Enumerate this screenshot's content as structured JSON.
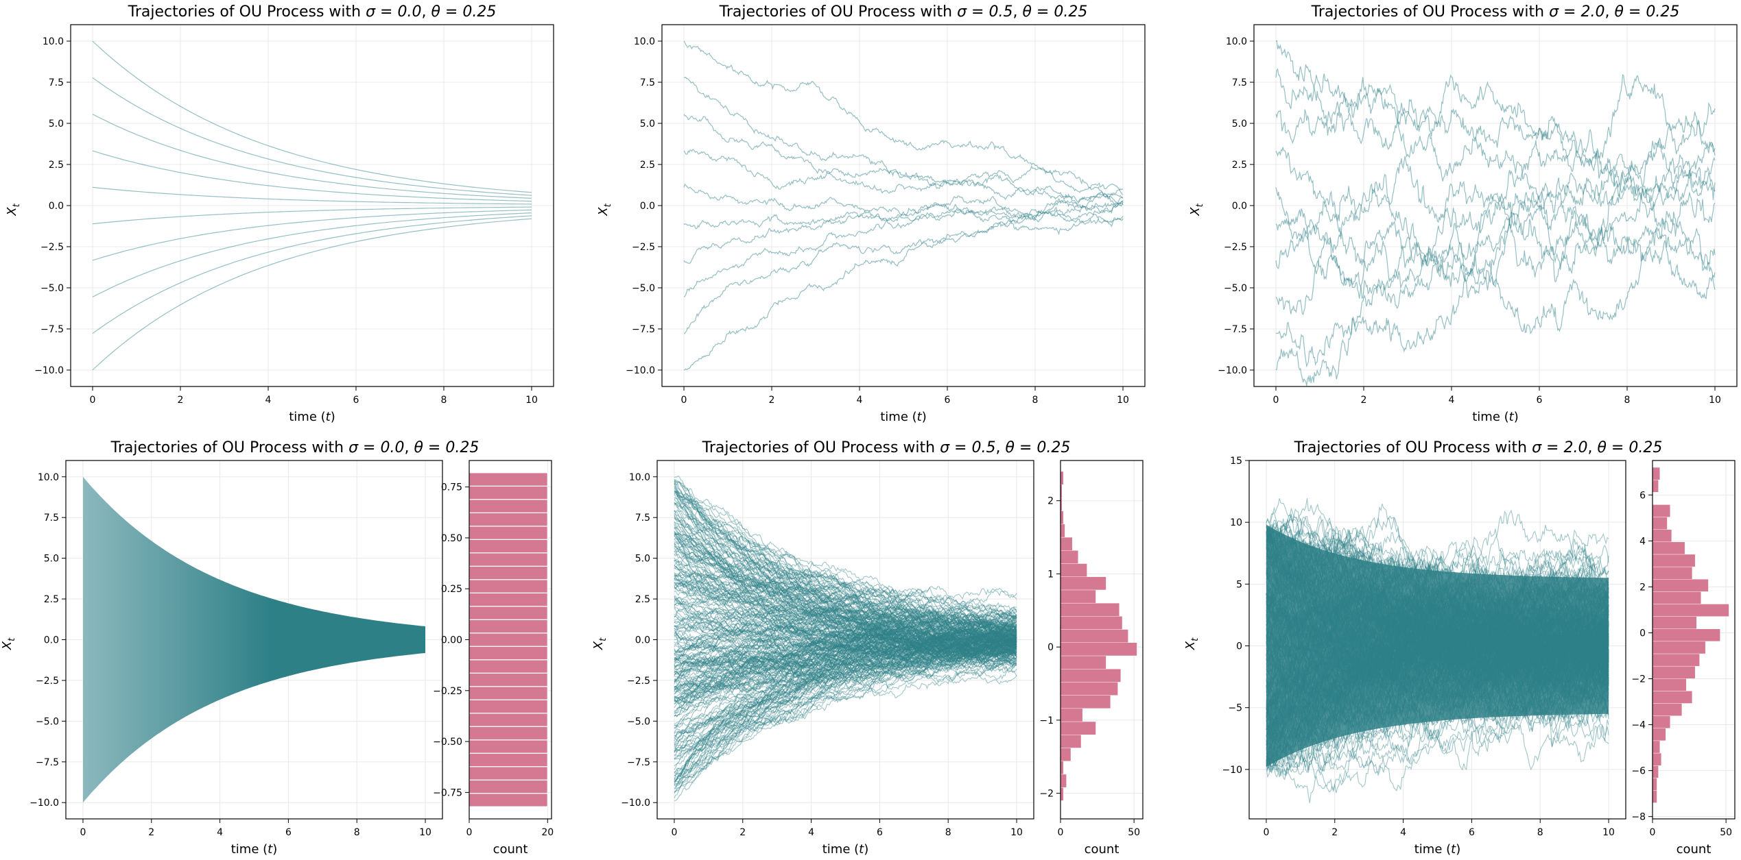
{
  "colors": {
    "trajectory": "#2e8087",
    "histogram": "#d57892",
    "grid": "#e8e8e8"
  },
  "chart_data": [
    {
      "type": "line",
      "title_prefix": "Trajectories of OU Process with ",
      "sigma_label": "σ = 0.0",
      "theta_label": "θ = 0.25",
      "xlabel": "time (t)",
      "ylabel": "X_t",
      "xlim": [
        -0.5,
        10.5
      ],
      "ylim": [
        -11.0,
        11.0
      ],
      "xticks": [
        0,
        2,
        4,
        6,
        8,
        10
      ],
      "yticks": [
        -10.0,
        -7.5,
        -5.0,
        -2.5,
        0.0,
        2.5,
        5.0,
        7.5,
        10.0
      ],
      "theta": 0.25,
      "sigma": 0.0,
      "initial_values": [
        10.0,
        7.78,
        5.56,
        3.33,
        1.11,
        -1.11,
        -3.33,
        -5.56,
        -7.78,
        -10.0
      ],
      "t_range": [
        0,
        10
      ],
      "grid": true
    },
    {
      "type": "line",
      "title_prefix": "Trajectories of OU Process with ",
      "sigma_label": "σ = 0.5",
      "theta_label": "θ = 0.25",
      "xlabel": "time (t)",
      "ylabel": "X_t",
      "xlim": [
        -0.5,
        10.5
      ],
      "ylim": [
        -11.0,
        11.0
      ],
      "xticks": [
        0,
        2,
        4,
        6,
        8,
        10
      ],
      "yticks": [
        -10.0,
        -7.5,
        -5.0,
        -2.5,
        0.0,
        2.5,
        5.0,
        7.5,
        10.0
      ],
      "theta": 0.25,
      "sigma": 0.5,
      "initial_values": [
        10.0,
        7.78,
        5.56,
        3.33,
        1.11,
        -1.11,
        -3.33,
        -5.56,
        -7.78,
        -10.0
      ],
      "t_range": [
        0,
        10
      ],
      "grid": true
    },
    {
      "type": "line",
      "title_prefix": "Trajectories of OU Process with ",
      "sigma_label": "σ = 2.0",
      "theta_label": "θ = 0.25",
      "xlabel": "time (t)",
      "ylabel": "X_t",
      "xlim": [
        -0.5,
        10.5
      ],
      "ylim": [
        -11.0,
        11.0
      ],
      "xticks": [
        0,
        2,
        4,
        6,
        8,
        10
      ],
      "yticks": [
        -10.0,
        -7.5,
        -5.0,
        -2.5,
        0.0,
        2.5,
        5.0,
        7.5,
        10.0
      ],
      "theta": 0.25,
      "sigma": 2.0,
      "initial_values": [
        10.0,
        7.78,
        5.56,
        3.33,
        1.11,
        -1.11,
        -3.33,
        -5.56,
        -7.78,
        -10.0
      ],
      "t_range": [
        0,
        10
      ],
      "grid": true
    },
    {
      "type": "line",
      "title_prefix": "Trajectories of OU Process with ",
      "sigma_label": "σ = 0.0",
      "theta_label": "θ = 0.25",
      "xlabel": "time (t)",
      "ylabel": "X_t",
      "xlim": [
        -0.5,
        10.5
      ],
      "ylim": [
        -11.0,
        11.0
      ],
      "xticks": [
        0,
        2,
        4,
        6,
        8,
        10
      ],
      "yticks": [
        -10.0,
        -7.5,
        -5.0,
        -2.5,
        0.0,
        2.5,
        5.0,
        7.5,
        10.0
      ],
      "theta": 0.25,
      "sigma": 0.0,
      "initial_range": [
        -10.0,
        10.0
      ],
      "t_range": [
        0,
        10
      ],
      "grid": true,
      "histogram": {
        "type": "bar",
        "orientation": "horizontal",
        "xlabel": "count",
        "xlim": [
          0,
          21
        ],
        "ylim": [
          -0.88,
          0.88
        ],
        "xticks": [
          0,
          20
        ],
        "yticks": [
          -0.75,
          -0.5,
          -0.25,
          0.0,
          0.25,
          0.5,
          0.75
        ],
        "ytick_labels": [
          "−0.75",
          "−0.50",
          "−0.25",
          "0.00",
          "0.25",
          "0.50",
          "0.75"
        ],
        "bin_range": [
          -0.82,
          0.82
        ],
        "counts": [
          20,
          20,
          20,
          20,
          20,
          20,
          20,
          20,
          20,
          20,
          20,
          20,
          20,
          20,
          20,
          20,
          20,
          20,
          20,
          20,
          20,
          20,
          20,
          20,
          20
        ]
      }
    },
    {
      "type": "line",
      "title_prefix": "Trajectories of OU Process with ",
      "sigma_label": "σ = 0.5",
      "theta_label": "θ = 0.25",
      "xlabel": "time (t)",
      "ylabel": "X_t",
      "xlim": [
        -0.5,
        10.5
      ],
      "ylim": [
        -11.0,
        11.0
      ],
      "xticks": [
        0,
        2,
        4,
        6,
        8,
        10
      ],
      "yticks": [
        -10.0,
        -7.5,
        -5.0,
        -2.5,
        0.0,
        2.5,
        5.0,
        7.5,
        10.0
      ],
      "theta": 0.25,
      "sigma": 0.5,
      "initial_range": [
        -10.0,
        10.0
      ],
      "t_range": [
        0,
        10
      ],
      "grid": true,
      "histogram": {
        "type": "bar",
        "orientation": "horizontal",
        "xlabel": "count",
        "xlim": [
          0,
          56
        ],
        "ylim": [
          -2.35,
          2.55
        ],
        "xticks": [
          0,
          50
        ],
        "yticks": [
          -2,
          -1,
          0,
          1,
          2
        ],
        "ytick_labels": [
          "−2",
          "−1",
          "0",
          "1",
          "2"
        ],
        "bin_range": [
          -2.1,
          2.4
        ],
        "counts": [
          2,
          4,
          2,
          7,
          14,
          24,
          15,
          34,
          39,
          41,
          31,
          52,
          46,
          42,
          40,
          24,
          31,
          18,
          12,
          8,
          3,
          2,
          1,
          1,
          2
        ]
      }
    },
    {
      "type": "line",
      "title_prefix": "Trajectories of OU Process with ",
      "sigma_label": "σ = 2.0",
      "theta_label": "θ = 0.25",
      "xlabel": "time (t)",
      "ylabel": "X_t",
      "xlim": [
        -0.5,
        10.5
      ],
      "ylim": [
        -14.0,
        15.0
      ],
      "xticks": [
        0,
        2,
        4,
        6,
        8,
        10
      ],
      "yticks": [
        -10,
        -5,
        0,
        5,
        10,
        15
      ],
      "ytick_labels": [
        "−10",
        "−5",
        "0",
        "5",
        "10",
        "15"
      ],
      "theta": 0.25,
      "sigma": 2.0,
      "initial_range": [
        -10.0,
        10.0
      ],
      "t_range": [
        0,
        10
      ],
      "grid": true,
      "histogram": {
        "type": "bar",
        "orientation": "horizontal",
        "xlabel": "count",
        "xlim": [
          0,
          56
        ],
        "ylim": [
          -8.1,
          7.5
        ],
        "xticks": [
          0,
          50
        ],
        "yticks": [
          -8,
          -6,
          -4,
          -2,
          0,
          2,
          4,
          6
        ],
        "ytick_labels": [
          "−8",
          "−6",
          "−4",
          "−2",
          "0",
          "2",
          "4",
          "6"
        ],
        "bin_range": [
          -7.4,
          7.2
        ],
        "counts": [
          3,
          3,
          4,
          6,
          5,
          9,
          12,
          20,
          27,
          23,
          29,
          32,
          36,
          46,
          30,
          52,
          33,
          38,
          27,
          29,
          22,
          13,
          10,
          12,
          0,
          4,
          5
        ]
      }
    }
  ]
}
